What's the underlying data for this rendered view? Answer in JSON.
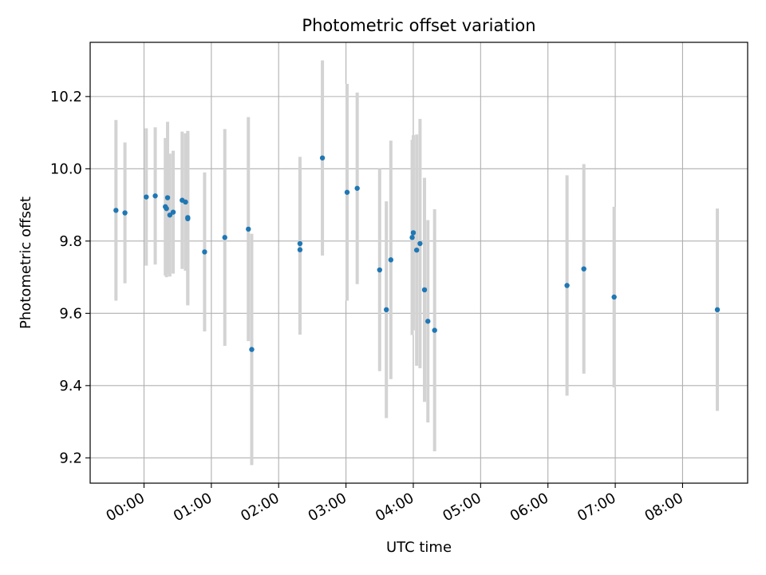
{
  "chart_data": {
    "type": "scatter",
    "title": "Photometric offset variation",
    "xlabel": "UTC time",
    "ylabel": "Photometric offset",
    "xlim": [
      "23:12",
      "08:58"
    ],
    "ylim": [
      9.13,
      10.35
    ],
    "grid": true,
    "x_ticks": [
      "00:00",
      "01:00",
      "02:00",
      "03:00",
      "04:00",
      "05:00",
      "06:00",
      "07:00",
      "08:00"
    ],
    "y_ticks": [
      "9.2",
      "9.4",
      "9.6",
      "9.8",
      "10.0",
      "10.2"
    ],
    "colors": {
      "marker": "#1f77b4",
      "errorbar": "#d3d3d3",
      "grid": "#b0b0b0"
    },
    "series": [
      {
        "points": [
          {
            "t": "23:35",
            "y": 9.885,
            "err": 0.25
          },
          {
            "t": "23:43",
            "y": 9.878,
            "err": 0.195
          },
          {
            "t": "00:02",
            "y": 9.922,
            "err": 0.19
          },
          {
            "t": "00:10",
            "y": 9.925,
            "err": 0.19
          },
          {
            "t": "00:19",
            "y": 9.895,
            "err": 0.19
          },
          {
            "t": "00:20",
            "y": 9.89,
            "err": 0.19
          },
          {
            "t": "00:21",
            "y": 9.92,
            "err": 0.21
          },
          {
            "t": "00:23",
            "y": 9.872,
            "err": 0.17
          },
          {
            "t": "00:26",
            "y": 9.88,
            "err": 0.17
          },
          {
            "t": "00:34",
            "y": 9.913,
            "err": 0.19
          },
          {
            "t": "00:37",
            "y": 9.908,
            "err": 0.19
          },
          {
            "t": "00:39",
            "y": 9.865,
            "err": 0.24
          },
          {
            "t": "00:39",
            "y": 9.862,
            "err": 0.24
          },
          {
            "t": "00:54",
            "y": 9.77,
            "err": 0.22
          },
          {
            "t": "01:12",
            "y": 9.81,
            "err": 0.3
          },
          {
            "t": "01:33",
            "y": 9.833,
            "err": 0.31
          },
          {
            "t": "01:36",
            "y": 9.5,
            "err": 0.32
          },
          {
            "t": "02:19",
            "y": 9.793,
            "err": 0.24
          },
          {
            "t": "02:19",
            "y": 9.776,
            "err": 0.235
          },
          {
            "t": "02:39",
            "y": 10.03,
            "err": 0.27
          },
          {
            "t": "03:01",
            "y": 9.935,
            "err": 0.3
          },
          {
            "t": "03:10",
            "y": 9.946,
            "err": 0.265
          },
          {
            "t": "03:30",
            "y": 9.72,
            "err": 0.28
          },
          {
            "t": "03:36",
            "y": 9.61,
            "err": 0.3
          },
          {
            "t": "03:40",
            "y": 9.748,
            "err": 0.33
          },
          {
            "t": "03:59",
            "y": 9.81,
            "err": 0.27
          },
          {
            "t": "04:00",
            "y": 9.823,
            "err": 0.27
          },
          {
            "t": "04:03",
            "y": 9.775,
            "err": 0.32
          },
          {
            "t": "04:06",
            "y": 9.793,
            "err": 0.345
          },
          {
            "t": "04:10",
            "y": 9.665,
            "err": 0.31
          },
          {
            "t": "04:13",
            "y": 9.578,
            "err": 0.28
          },
          {
            "t": "04:19",
            "y": 9.553,
            "err": 0.335
          },
          {
            "t": "06:17",
            "y": 9.677,
            "err": 0.305
          },
          {
            "t": "06:32",
            "y": 9.723,
            "err": 0.29
          },
          {
            "t": "06:59",
            "y": 9.645,
            "err": 0.25
          },
          {
            "t": "08:31",
            "y": 9.61,
            "err": 0.28
          }
        ]
      }
    ]
  }
}
